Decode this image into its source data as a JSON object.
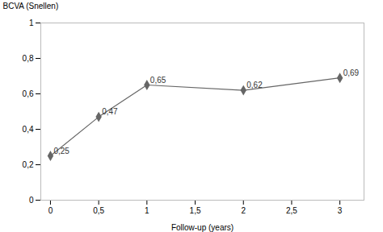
{
  "chart_data": {
    "type": "line",
    "xlabel": "Follow-up (years)",
    "ylabel": "BCVA (Snellen)",
    "x": [
      0,
      0.5,
      1,
      2,
      3
    ],
    "values": [
      0.25,
      0.47,
      0.65,
      0.62,
      0.69
    ],
    "value_labels": [
      "0,25",
      "0,47",
      "0,65",
      "0,62",
      "0,69"
    ],
    "data_labels": true,
    "color": "#666666",
    "marker": "diamond",
    "xlim": [
      -0.1,
      3.25
    ],
    "xticks": [
      0,
      {
        "value": 0.5,
        "label": "0,5"
      },
      1,
      {
        "value": 1.5,
        "label": "1,5"
      },
      2,
      {
        "value": 2.5,
        "label": "2,5"
      },
      3
    ],
    "ylim": [
      0,
      1.0
    ],
    "yticks": [
      0,
      {
        "value": 0.2,
        "label": "0,2"
      },
      {
        "value": 0.4,
        "label": "0,4"
      },
      {
        "value": 0.6,
        "label": "0,6"
      },
      {
        "value": 0.8,
        "label": "0,8"
      },
      1
    ],
    "grid": false
  }
}
